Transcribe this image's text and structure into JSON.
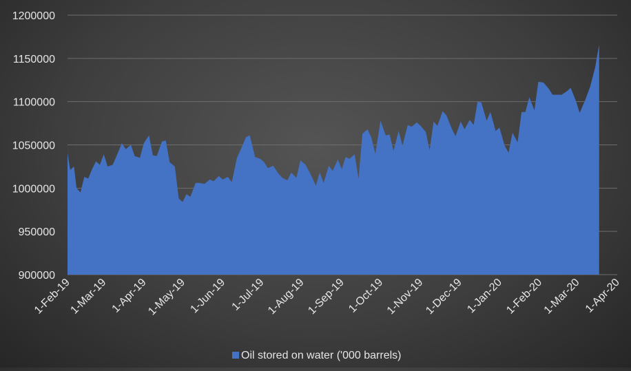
{
  "chart_data": {
    "type": "area",
    "title": "",
    "xlabel": "",
    "ylabel": "",
    "ylim": [
      900000,
      1200000
    ],
    "y_ticks": [
      "900000",
      "950000",
      "1000000",
      "1050000",
      "1100000",
      "1150000",
      "1200000"
    ],
    "x_ticks": [
      "1-Feb-19",
      "1-Mar-19",
      "1-Apr-19",
      "1-May-19",
      "1-Jun-19",
      "1-Jul-19",
      "1-Aug-19",
      "1-Sep-19",
      "1-Oct-19",
      "1-Nov-19",
      "1-Dec-19",
      "1-Jan-20",
      "1-Feb-20",
      "1-Mar-20",
      "1-Apr-20"
    ],
    "grid": true,
    "legend_position": "bottom",
    "series": [
      {
        "name": "Oil stored on water ('000 barrels)",
        "color": "#4472c4",
        "points": [
          [
            "2019-02-01",
            1041000
          ],
          [
            "2019-02-03",
            1021000
          ],
          [
            "2019-02-06",
            1025000
          ],
          [
            "2019-02-08",
            1000000
          ],
          [
            "2019-02-11",
            995000
          ],
          [
            "2019-02-14",
            1013000
          ],
          [
            "2019-02-17",
            1011000
          ],
          [
            "2019-02-20",
            1022000
          ],
          [
            "2019-02-23",
            1031000
          ],
          [
            "2019-02-26",
            1027000
          ],
          [
            "2019-03-01",
            1039000
          ],
          [
            "2019-03-04",
            1025000
          ],
          [
            "2019-03-08",
            1027000
          ],
          [
            "2019-03-12",
            1041000
          ],
          [
            "2019-03-15",
            1052000
          ],
          [
            "2019-03-18",
            1045000
          ],
          [
            "2019-03-22",
            1050000
          ],
          [
            "2019-03-25",
            1037000
          ],
          [
            "2019-03-29",
            1035000
          ],
          [
            "2019-04-01",
            1052000
          ],
          [
            "2019-04-05",
            1061000
          ],
          [
            "2019-04-08",
            1038000
          ],
          [
            "2019-04-11",
            1037000
          ],
          [
            "2019-04-15",
            1054000
          ],
          [
            "2019-04-18",
            1055000
          ],
          [
            "2019-04-21",
            1030000
          ],
          [
            "2019-04-25",
            1025000
          ],
          [
            "2019-04-28",
            988000
          ],
          [
            "2019-05-01",
            984000
          ],
          [
            "2019-05-04",
            993000
          ],
          [
            "2019-05-07",
            990000
          ],
          [
            "2019-05-11",
            1006000
          ],
          [
            "2019-05-14",
            1006000
          ],
          [
            "2019-05-18",
            1005000
          ],
          [
            "2019-05-22",
            1010000
          ],
          [
            "2019-05-25",
            1008000
          ],
          [
            "2019-05-29",
            1014000
          ],
          [
            "2019-06-01",
            1010000
          ],
          [
            "2019-06-05",
            1013000
          ],
          [
            "2019-06-08",
            1007000
          ],
          [
            "2019-06-12",
            1035000
          ],
          [
            "2019-06-15",
            1045000
          ],
          [
            "2019-06-19",
            1059000
          ],
          [
            "2019-06-22",
            1061000
          ],
          [
            "2019-06-26",
            1036000
          ],
          [
            "2019-06-30",
            1034000
          ],
          [
            "2019-07-03",
            1030000
          ],
          [
            "2019-07-06",
            1023000
          ],
          [
            "2019-07-10",
            1026000
          ],
          [
            "2019-07-14",
            1017000
          ],
          [
            "2019-07-17",
            1012000
          ],
          [
            "2019-07-21",
            1009000
          ],
          [
            "2019-07-24",
            1018000
          ],
          [
            "2019-07-28",
            1012000
          ],
          [
            "2019-07-31",
            1032000
          ],
          [
            "2019-08-04",
            1027000
          ],
          [
            "2019-08-08",
            1016000
          ],
          [
            "2019-08-12",
            1003000
          ],
          [
            "2019-08-15",
            1018000
          ],
          [
            "2019-08-18",
            1006000
          ],
          [
            "2019-08-22",
            1026000
          ],
          [
            "2019-08-25",
            1020000
          ],
          [
            "2019-08-29",
            1033000
          ],
          [
            "2019-09-01",
            1022000
          ],
          [
            "2019-09-04",
            1036000
          ],
          [
            "2019-09-07",
            1034000
          ],
          [
            "2019-09-11",
            1039000
          ],
          [
            "2019-09-14",
            1011000
          ],
          [
            "2019-09-17",
            1063000
          ],
          [
            "2019-09-21",
            1068000
          ],
          [
            "2019-09-24",
            1058000
          ],
          [
            "2019-09-27",
            1040000
          ],
          [
            "2019-10-01",
            1078000
          ],
          [
            "2019-10-05",
            1061000
          ],
          [
            "2019-10-08",
            1062000
          ],
          [
            "2019-10-11",
            1043000
          ],
          [
            "2019-10-15",
            1066000
          ],
          [
            "2019-10-18",
            1049000
          ],
          [
            "2019-10-22",
            1073000
          ],
          [
            "2019-10-25",
            1071000
          ],
          [
            "2019-10-29",
            1076000
          ],
          [
            "2019-11-01",
            1072000
          ],
          [
            "2019-11-05",
            1065000
          ],
          [
            "2019-11-08",
            1044000
          ],
          [
            "2019-11-11",
            1077000
          ],
          [
            "2019-11-14",
            1072000
          ],
          [
            "2019-11-18",
            1089000
          ],
          [
            "2019-11-21",
            1084000
          ],
          [
            "2019-11-25",
            1069000
          ],
          [
            "2019-11-28",
            1060000
          ],
          [
            "2019-12-02",
            1077000
          ],
          [
            "2019-12-05",
            1068000
          ],
          [
            "2019-12-09",
            1079000
          ],
          [
            "2019-12-12",
            1073000
          ],
          [
            "2019-12-15",
            1100000
          ],
          [
            "2019-12-18",
            1099000
          ],
          [
            "2019-12-22",
            1078000
          ],
          [
            "2019-12-25",
            1088000
          ],
          [
            "2019-12-29",
            1066000
          ],
          [
            "2020-01-01",
            1070000
          ],
          [
            "2020-01-05",
            1049000
          ],
          [
            "2020-01-08",
            1041000
          ],
          [
            "2020-01-11",
            1064000
          ],
          [
            "2020-01-15",
            1053000
          ],
          [
            "2020-01-18",
            1088000
          ],
          [
            "2020-01-21",
            1088000
          ],
          [
            "2020-01-24",
            1105000
          ],
          [
            "2020-01-28",
            1090000
          ],
          [
            "2020-01-31",
            1123000
          ],
          [
            "2020-02-04",
            1122000
          ],
          [
            "2020-02-08",
            1115000
          ],
          [
            "2020-02-11",
            1108000
          ],
          [
            "2020-02-15",
            1108000
          ],
          [
            "2020-02-18",
            1108000
          ],
          [
            "2020-02-22",
            1112000
          ],
          [
            "2020-02-25",
            1116000
          ],
          [
            "2020-02-29",
            1101000
          ],
          [
            "2020-03-03",
            1087000
          ],
          [
            "2020-03-07",
            1101000
          ],
          [
            "2020-03-11",
            1117000
          ],
          [
            "2020-03-15",
            1140000
          ],
          [
            "2020-03-18",
            1166000
          ]
        ]
      }
    ]
  }
}
